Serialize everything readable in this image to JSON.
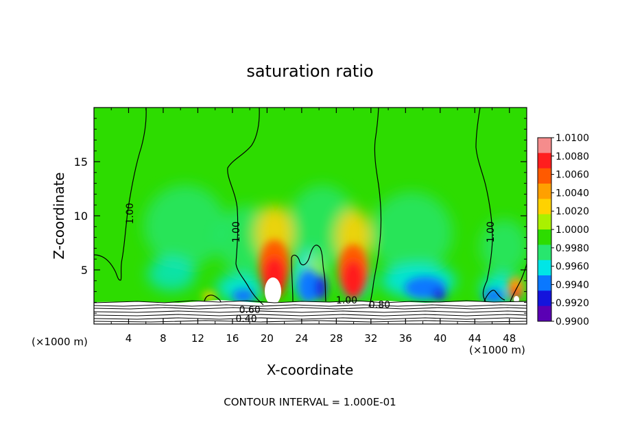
{
  "chart_data": {
    "type": "heatmap",
    "title": "saturation ratio",
    "xlabel": "X-coordinate",
    "ylabel": "Z-coordinate",
    "x_unit_left": "(×1000 m)",
    "x_unit_right": "(×1000 m)",
    "xlim": [
      0,
      50
    ],
    "ylim": [
      0,
      20
    ],
    "xticks": [
      "4",
      "8",
      "12",
      "16",
      "20",
      "24",
      "28",
      "32",
      "36",
      "40",
      "44",
      "48"
    ],
    "yticks": [
      "5",
      "10",
      "15"
    ],
    "colorbar_labels": [
      "1.0100",
      "1.0080",
      "1.0060",
      "1.0040",
      "1.0020",
      "1.0000",
      "0.9980",
      "0.9960",
      "0.9940",
      "0.9920",
      "0.9900"
    ],
    "colorbar_colors": [
      "#f58c8c",
      "#ff1e1e",
      "#ff5a00",
      "#ffa000",
      "#ffd200",
      "#aaf000",
      "#2ddc00",
      "#28e66e",
      "#00e6e6",
      "#0a78ff",
      "#1414dc",
      "#5a00b4"
    ],
    "contour_labels": [
      {
        "text": "1.00",
        "x": 4.5,
        "y": 10.2
      },
      {
        "text": "1.00",
        "x": 16.8,
        "y": 8.5
      },
      {
        "text": "1.00",
        "x": 46.2,
        "y": 8.5
      },
      {
        "text": "1.00",
        "x": 29.2,
        "y": 1.9
      },
      {
        "text": "0.80",
        "x": 33.0,
        "y": 1.5
      },
      {
        "text": "0.60",
        "x": 18.0,
        "y": 1.0
      },
      {
        "text": "0.40",
        "x": 17.6,
        "y": 0.2
      }
    ],
    "footer": "CONTOUR INTERVAL = 1.000E-01"
  }
}
